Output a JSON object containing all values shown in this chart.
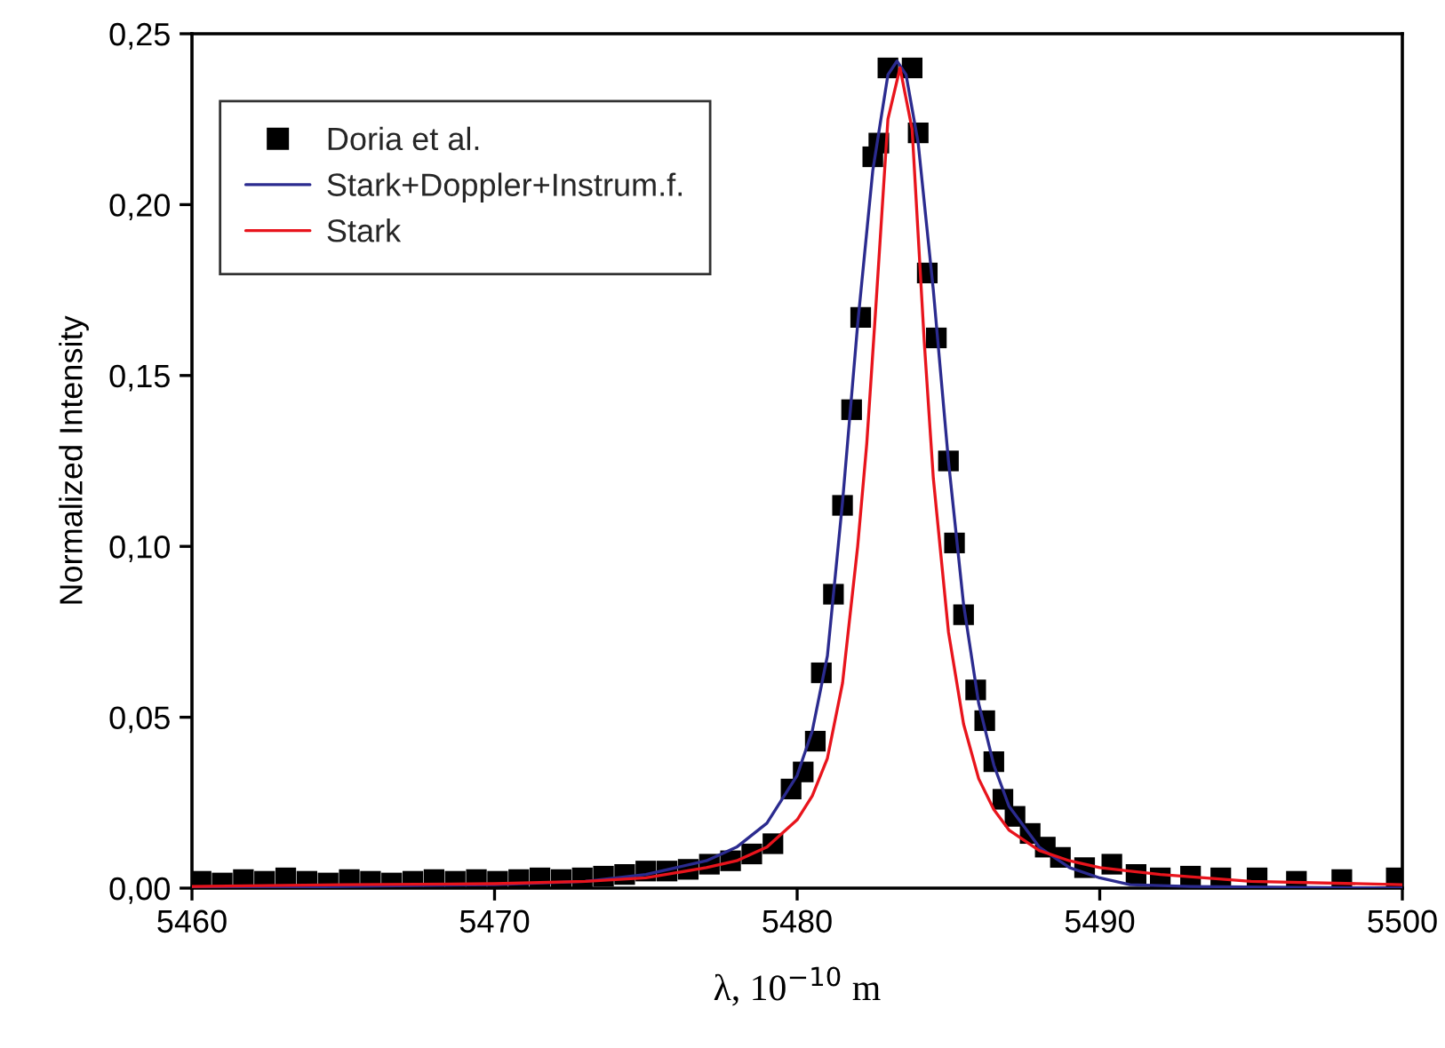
{
  "chart_data": {
    "type": "scatter",
    "xlabel": "λ, 10$^{−10}$ m",
    "ylabel": "Normalized Intensity",
    "xlim": [
      5460,
      5500
    ],
    "xticks": [
      5460,
      5470,
      5480,
      5490,
      5500
    ],
    "ylim": [
      0,
      0.25
    ],
    "yticks": [
      {
        "value": 0,
        "label": "0,00"
      },
      {
        "value": 0.05,
        "label": "0,05"
      },
      {
        "value": 0.1,
        "label": "0,10"
      },
      {
        "value": 0.15,
        "label": "0,15"
      },
      {
        "value": 0.2,
        "label": "0,20"
      },
      {
        "value": 0.25,
        "label": "0,25"
      }
    ],
    "grid": false,
    "legend": "top left",
    "series": [
      {
        "name": "Doria et al.",
        "marker": "square",
        "color": "#000000",
        "x": [
          5460.3,
          5461,
          5461.7,
          5462.4,
          5463.1,
          5463.8,
          5464.5,
          5465.2,
          5465.9,
          5466.6,
          5467.3,
          5468,
          5468.7,
          5469.4,
          5470.1,
          5470.8,
          5471.5,
          5472.2,
          5472.9,
          5473.6,
          5474.3,
          5475,
          5475.7,
          5476.4,
          5477.1,
          5477.8,
          5478.5,
          5479.2,
          5479.8,
          5480.2,
          5480.6,
          5480.8,
          5481.2,
          5481.5,
          5481.8,
          5482.1,
          5482.5,
          5482.7,
          5483.0,
          5483.8,
          5484.0,
          5484.3,
          5484.6,
          5485.0,
          5485.2,
          5485.5,
          5485.9,
          5486.2,
          5486.5,
          5486.8,
          5487.2,
          5487.7,
          5488.2,
          5488.7,
          5489.5,
          5490.4,
          5491.2,
          5492,
          5493,
          5494,
          5495.2,
          5496.5,
          5498,
          5499.8
        ],
        "values": [
          0.002,
          0.0015,
          0.0025,
          0.002,
          0.003,
          0.002,
          0.0015,
          0.0025,
          0.002,
          0.0015,
          0.002,
          0.0025,
          0.002,
          0.0025,
          0.002,
          0.0025,
          0.003,
          0.0025,
          0.003,
          0.0035,
          0.004,
          0.005,
          0.005,
          0.0055,
          0.007,
          0.008,
          0.01,
          0.013,
          0.029,
          0.034,
          0.043,
          0.063,
          0.086,
          0.112,
          0.14,
          0.167,
          0.214,
          0.218,
          0.24,
          0.24,
          0.221,
          0.18,
          0.161,
          0.125,
          0.101,
          0.08,
          0.058,
          0.049,
          0.037,
          0.026,
          0.021,
          0.016,
          0.012,
          0.009,
          0.006,
          0.007,
          0.004,
          0.003,
          0.0035,
          0.003,
          0.003,
          0.002,
          0.0025,
          0.003
        ]
      },
      {
        "name": "Stark+Doppler+Instrum.f.",
        "type": "line",
        "marker": "none",
        "color": "#2b2b8f",
        "x": [
          5460,
          5465,
          5470,
          5473,
          5475,
          5477,
          5478,
          5479,
          5480,
          5480.5,
          5481,
          5481.5,
          5482,
          5482.5,
          5483,
          5483.3,
          5483.6,
          5484,
          5484.5,
          5485,
          5485.5,
          5486,
          5486.5,
          5487,
          5488,
          5489,
          5490,
          5491,
          5493,
          5500
        ],
        "values": [
          0.0,
          0.0005,
          0.001,
          0.002,
          0.004,
          0.008,
          0.012,
          0.019,
          0.033,
          0.046,
          0.068,
          0.113,
          0.165,
          0.21,
          0.238,
          0.242,
          0.238,
          0.218,
          0.175,
          0.125,
          0.083,
          0.054,
          0.036,
          0.024,
          0.012,
          0.006,
          0.003,
          0.001,
          0.0005,
          0.0
        ]
      },
      {
        "name": "Stark",
        "type": "line",
        "marker": "none",
        "color": "#e8141c",
        "x": [
          5460,
          5465,
          5470,
          5473,
          5475,
          5477,
          5478,
          5479,
          5480,
          5480.5,
          5481,
          5481.5,
          5482,
          5482.3,
          5482.6,
          5483,
          5483.4,
          5483.8,
          5484.2,
          5484.5,
          5485,
          5485.5,
          5486,
          5486.5,
          5487,
          5488,
          5489,
          5490,
          5492,
          5495,
          5500
        ],
        "values": [
          0.0005,
          0.001,
          0.0013,
          0.002,
          0.003,
          0.006,
          0.008,
          0.012,
          0.02,
          0.027,
          0.038,
          0.06,
          0.1,
          0.13,
          0.17,
          0.225,
          0.24,
          0.222,
          0.16,
          0.12,
          0.075,
          0.048,
          0.032,
          0.023,
          0.017,
          0.011,
          0.008,
          0.006,
          0.004,
          0.002,
          0.001
        ]
      }
    ]
  }
}
